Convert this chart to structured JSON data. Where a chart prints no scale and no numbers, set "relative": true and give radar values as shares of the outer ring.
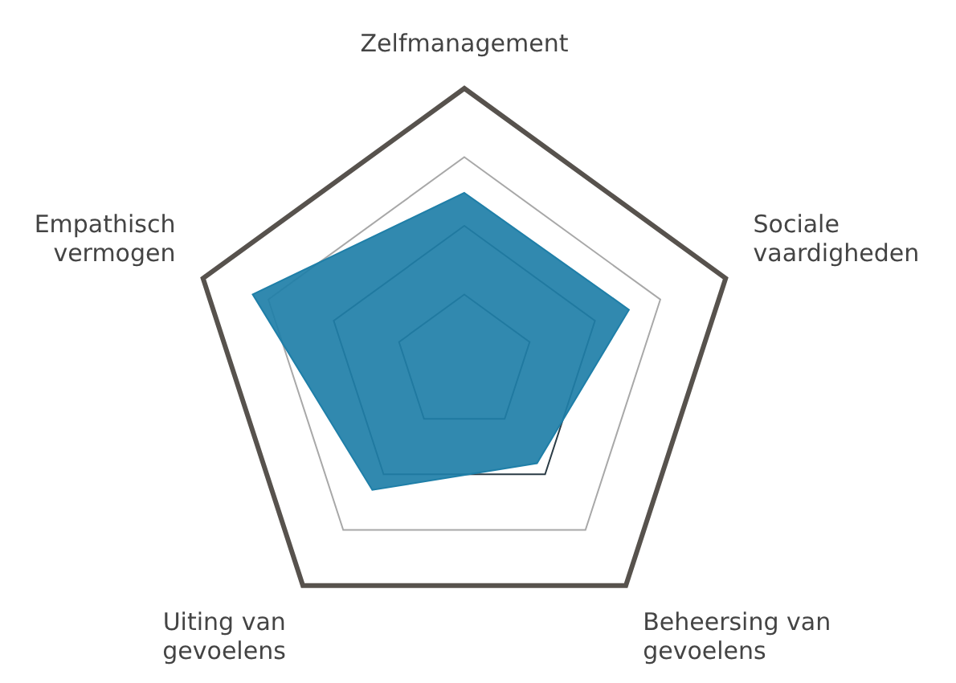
{
  "chart_data": {
    "type": "radar",
    "relative": true,
    "categories": [
      "Zelfmanagement",
      "Sociale vaardigheden",
      "Beheersing van gevoelens",
      "Uiting van gevoelens",
      "Empathisch vermogen"
    ],
    "series": [
      {
        "color": "#1f7fa8",
        "values": [
          0.62,
          0.63,
          0.45,
          0.57,
          0.81
        ]
      }
    ],
    "legend": false
  }
}
